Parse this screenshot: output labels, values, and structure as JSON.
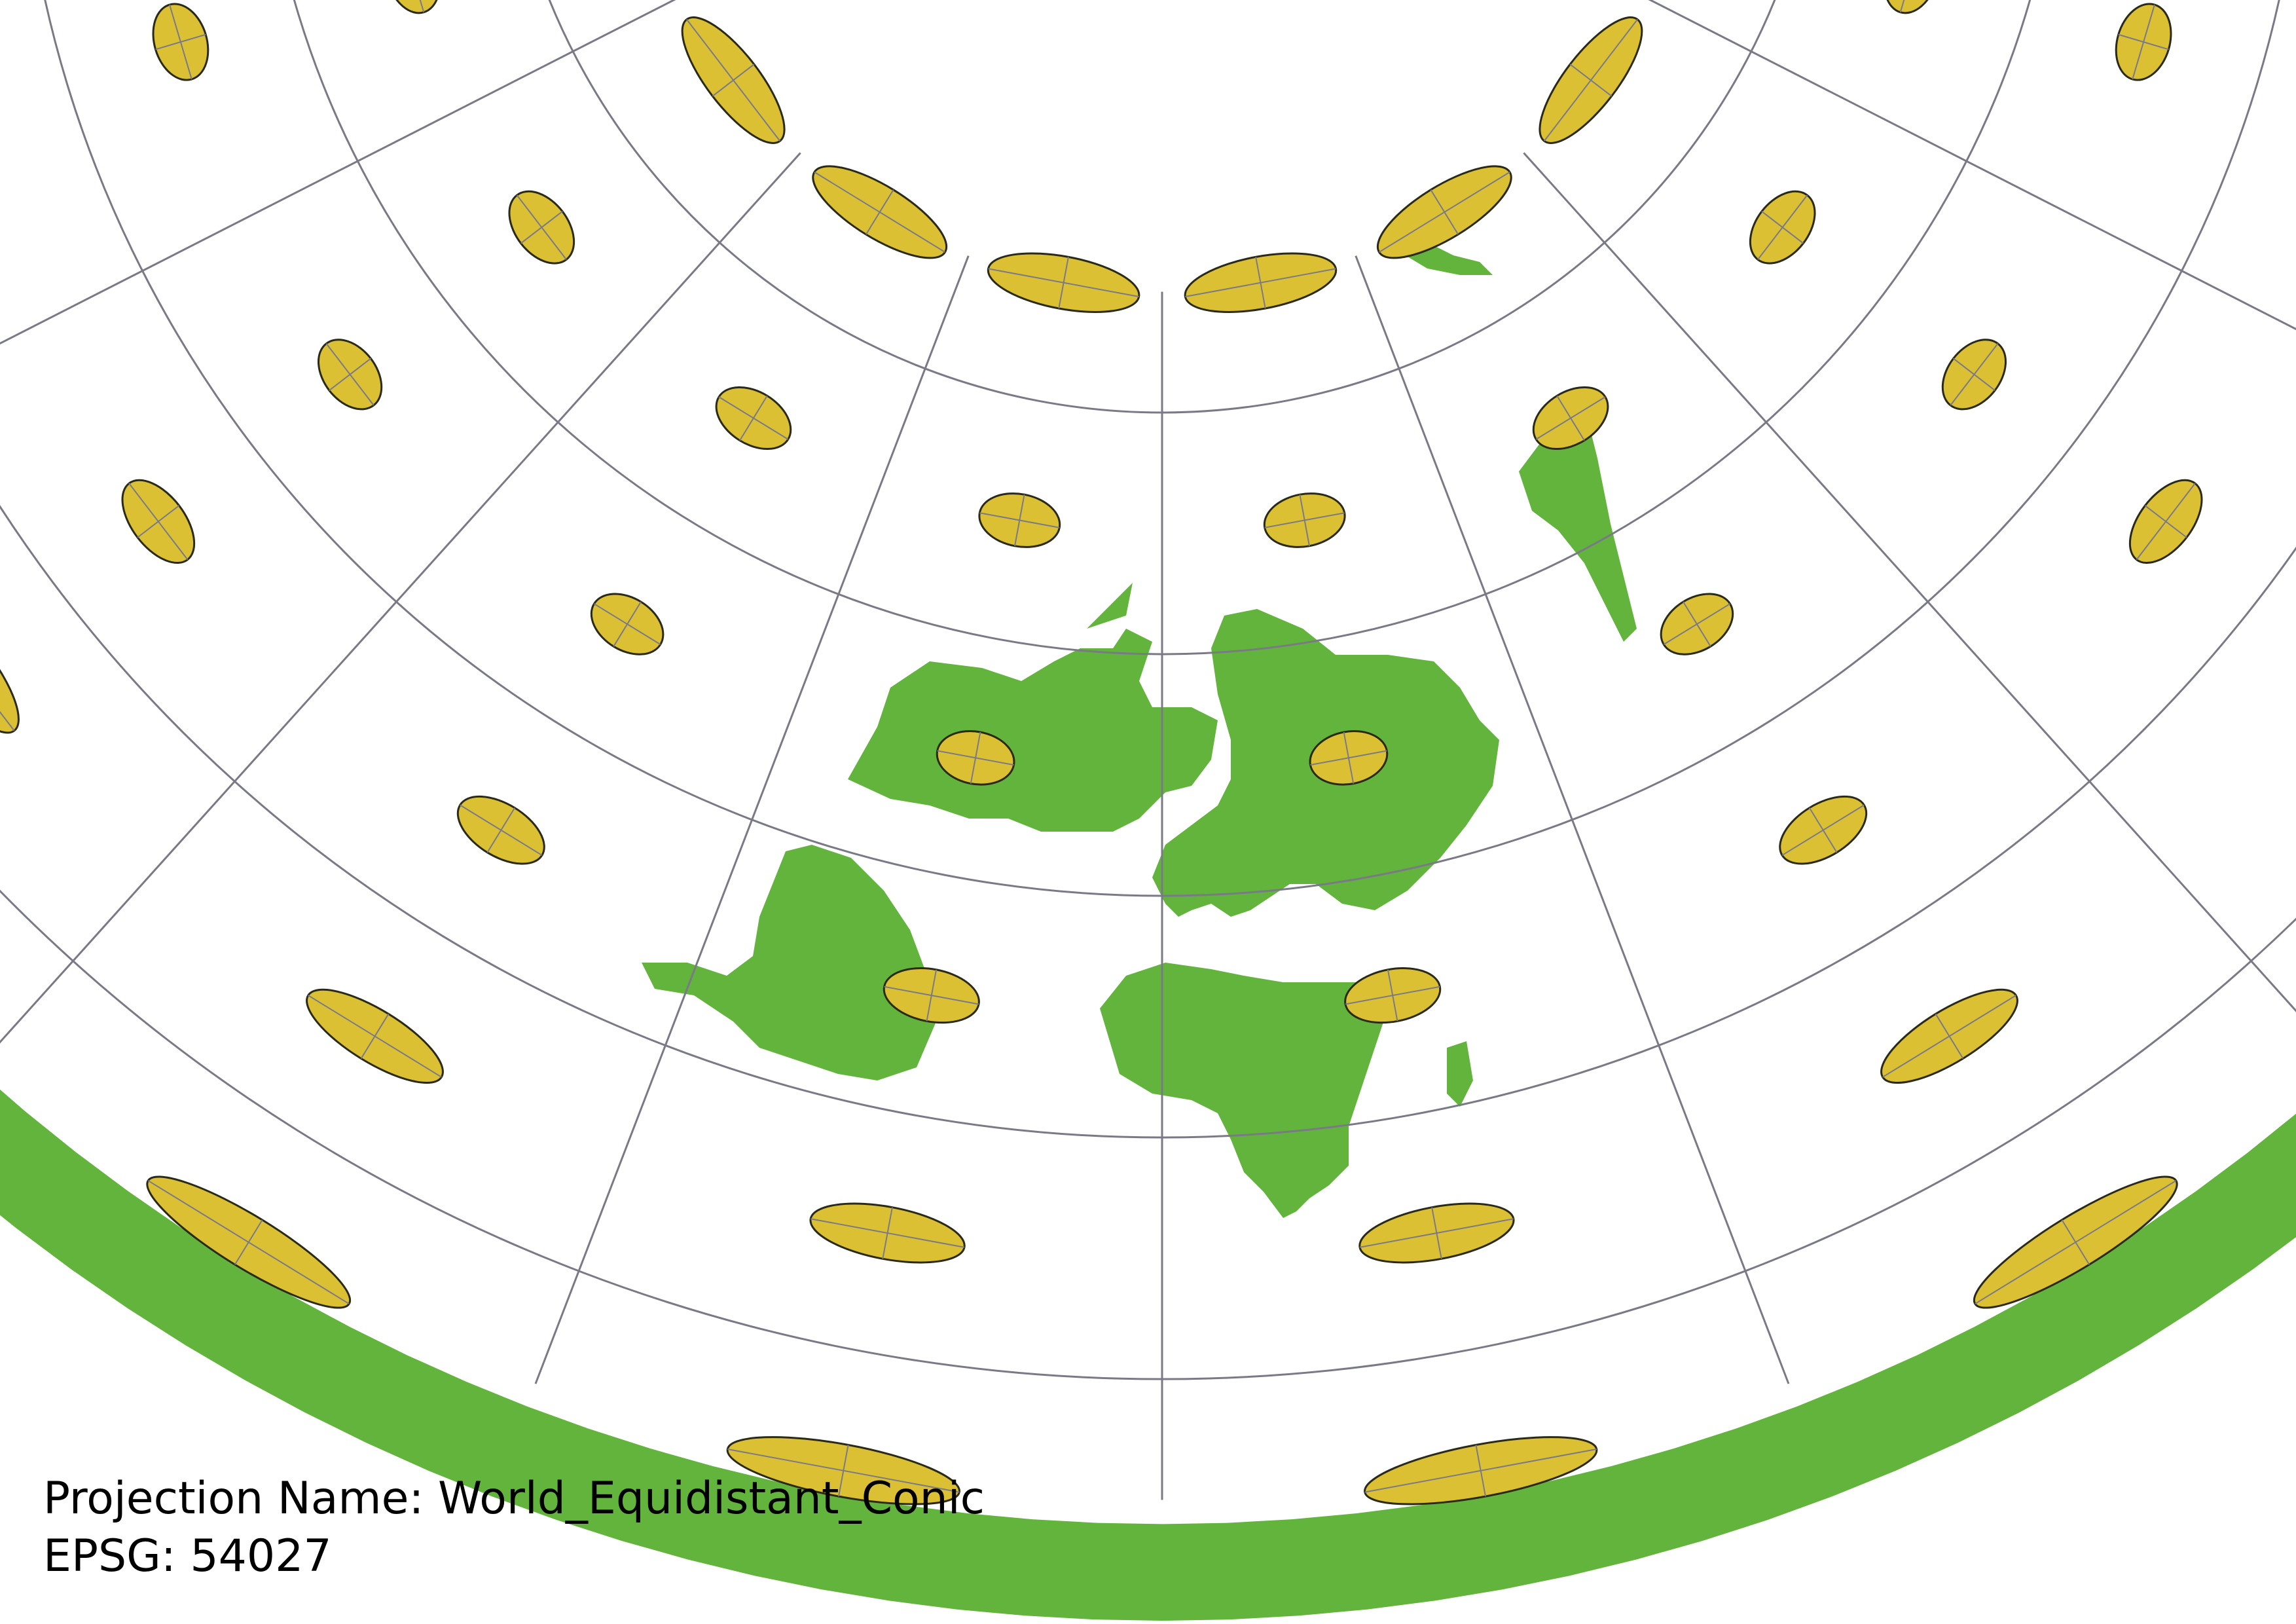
{
  "caption": {
    "projection_label": "Projection Name: World_Equidistant_Conic",
    "epsg_label": "EPSG: 54027"
  },
  "colors": {
    "land": "#62b43c",
    "ellipse_fill": "#dcc034",
    "ellipse_stroke": "#2a2a18",
    "graticule": "#7a7a86",
    "background": "#ffffff"
  },
  "map": {
    "projection": "World_Equidistant_Conic",
    "graticule_longitudes_deg": [
      -180,
      -150,
      -120,
      -90,
      -60,
      -30,
      0,
      30,
      60,
      90,
      120,
      150,
      180
    ],
    "graticule_latitudes_deg": [
      60,
      30,
      0,
      -30,
      -60
    ],
    "indicatrix_latitudes_deg": [
      75,
      45,
      15,
      -15,
      -45,
      -75
    ],
    "indicatrix_longitudes_deg": [
      -165,
      -135,
      -105,
      -75,
      -45,
      -15,
      15,
      45,
      75,
      105,
      135,
      165
    ]
  }
}
